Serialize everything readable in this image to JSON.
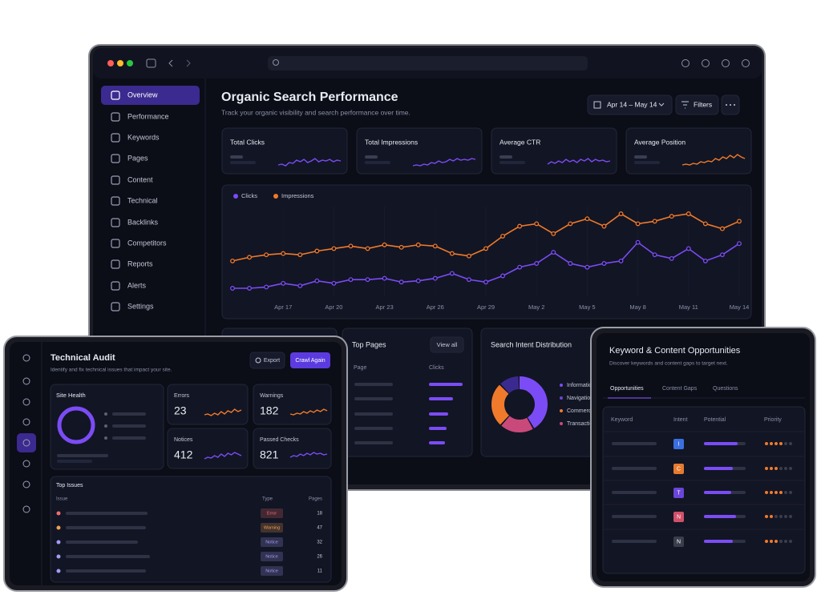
{
  "sidebar": {
    "items": [
      "Overview",
      "Performance",
      "Keywords",
      "Pages",
      "Content",
      "Technical",
      "Backlinks",
      "Competitors",
      "Reports",
      "Alerts",
      "Settings"
    ]
  },
  "header": {
    "title": "Organic Search Performance",
    "subtitle": "Track your organic visibility and search performance over time.",
    "date_range": "Apr 14 – May 14",
    "filters": "Filters"
  },
  "kpis": [
    "Total Clicks",
    "Total Impressions",
    "Average CTR",
    "Average Position"
  ],
  "chart_data": {
    "type": "line",
    "categories": [
      null,
      null,
      null,
      "Apr 17",
      null,
      null,
      "Apr 20",
      null,
      null,
      "Apr 23",
      null,
      null,
      "Apr 26",
      null,
      null,
      "Apr 29",
      null,
      null,
      "May 2",
      null,
      null,
      "May 5",
      null,
      null,
      "May 8",
      null,
      null,
      "May 11",
      null,
      null,
      "May 14"
    ],
    "series": [
      {
        "name": "Clicks",
        "color": "#7b4cf5",
        "values": [
          8,
          8,
          9,
          12,
          10,
          14,
          12,
          15,
          15,
          16,
          13,
          14,
          16,
          20,
          15,
          13,
          18,
          25,
          28,
          37,
          28,
          25,
          28,
          30,
          45,
          35,
          32,
          40,
          30,
          35,
          44
        ]
      },
      {
        "name": "Impressions",
        "color": "#f07a2b",
        "values": [
          30,
          33,
          35,
          36,
          35,
          38,
          40,
          42,
          40,
          43,
          41,
          43,
          42,
          36,
          34,
          40,
          50,
          58,
          60,
          52,
          60,
          64,
          58,
          68,
          60,
          62,
          66,
          68,
          60,
          56,
          62
        ]
      }
    ]
  },
  "top_pages": {
    "title": "Top Pages",
    "view_all": "View all",
    "columns": [
      "Page",
      "Clicks"
    ]
  },
  "intent": {
    "title": "Search Intent Distribution",
    "legend": [
      "Informational",
      "Navigational",
      "Commercial",
      "Transactional"
    ]
  },
  "audit": {
    "title": "Technical Audit",
    "subtitle": "Identify and fix technical issues that impact your site.",
    "export": "Export",
    "crawl": "Crawl Again",
    "site_health": "Site Health",
    "stats": [
      {
        "label": "Errors",
        "value": 23
      },
      {
        "label": "Warnings",
        "value": 182
      },
      {
        "label": "Notices",
        "value": 412
      },
      {
        "label": "Passed Checks",
        "value": 821
      }
    ],
    "issues": {
      "title": "Top Issues",
      "columns": [
        "Issue",
        "Type",
        "Pages"
      ],
      "rows": [
        {
          "type": "Error",
          "pages": 18,
          "color": "#f26d6d"
        },
        {
          "type": "Warning",
          "pages": 47,
          "color": "#f0a050"
        },
        {
          "type": "Notice",
          "pages": 32,
          "color": "#a49cf5"
        },
        {
          "type": "Notice",
          "pages": 26,
          "color": "#a49cf5"
        },
        {
          "type": "Notice",
          "pages": 11,
          "color": "#a49cf5"
        }
      ]
    }
  },
  "opportunities": {
    "title": "Keyword & Content Opportunities",
    "subtitle": "Discover keywords and content gaps to target next.",
    "tabs": [
      "Opportunities",
      "Content Gaps",
      "Questions"
    ],
    "columns": [
      "Keyword",
      "Intent",
      "Potential",
      "Priority"
    ],
    "intents": [
      {
        "label": "I",
        "color": "#3b6fe0"
      },
      {
        "label": "C",
        "color": "#e67a2e"
      },
      {
        "label": "T",
        "color": "#6a45d8"
      },
      {
        "label": "N",
        "color": "#d0506a"
      },
      {
        "label": "N",
        "color": "#3a3d4c"
      }
    ]
  }
}
